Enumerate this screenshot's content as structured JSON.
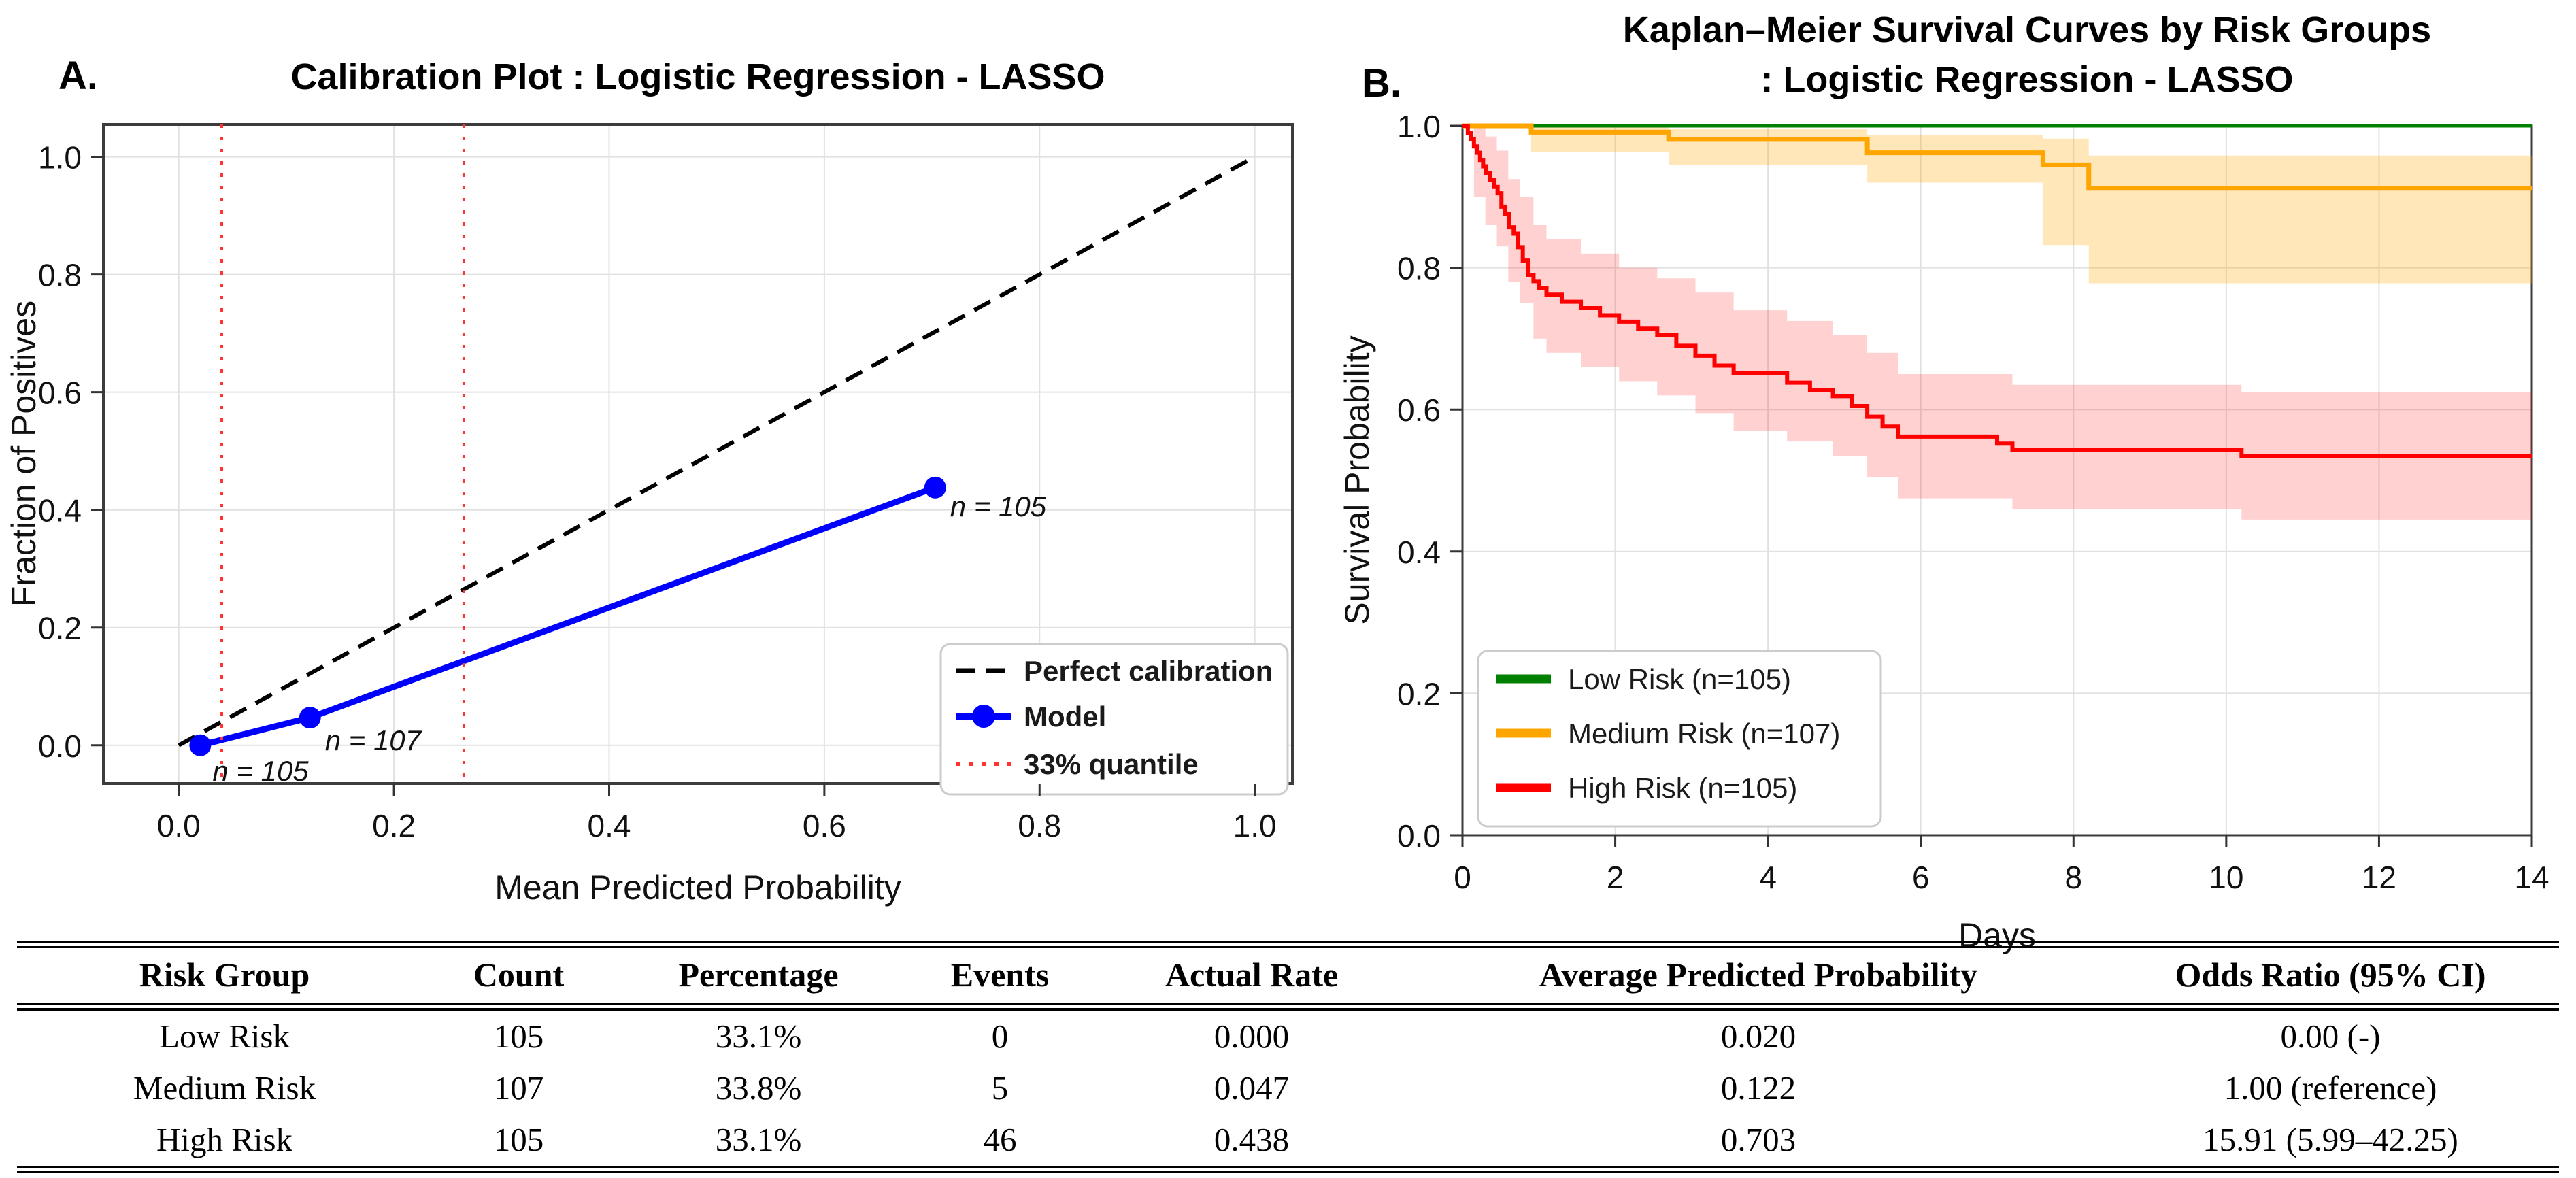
{
  "figure": {
    "panel_a": {
      "letter": "A.",
      "title": "Calibration Plot : Logistic Regression - LASSO",
      "xlabel": "Mean Predicted Probability",
      "ylabel": "Fraction of Positives"
    },
    "panel_b": {
      "letter": "B.",
      "title_line1": "Kaplan–Meier Survival Curves by Risk Groups",
      "title_line2": ": Logistic Regression - LASSO",
      "xlabel": "Days",
      "ylabel": "Survival Probability"
    }
  },
  "chart_data": [
    {
      "type": "line",
      "panel": "A",
      "title": "Calibration Plot : Logistic Regression - LASSO",
      "xlabel": "Mean Predicted Probability",
      "ylabel": "Fraction of Positives",
      "xlim": [
        -0.07,
        1.035
      ],
      "ylim": [
        -0.065,
        1.055
      ],
      "xticks": [
        0.0,
        0.2,
        0.4,
        0.6,
        0.8,
        1.0
      ],
      "yticks": [
        0.0,
        0.2,
        0.4,
        0.6,
        0.8,
        1.0
      ],
      "grid": true,
      "legend_position": "lower right",
      "series": [
        {
          "name": "Perfect calibration",
          "style": "dashed-line",
          "color": "#000000",
          "x": [
            0,
            1
          ],
          "y": [
            0,
            1
          ]
        },
        {
          "name": "Model",
          "style": "line-with-markers",
          "color": "#0000ff",
          "x": [
            0.02,
            0.122,
            0.703
          ],
          "y": [
            0.0,
            0.047,
            0.438
          ],
          "point_labels": [
            "n = 105",
            "n = 107",
            "n = 105"
          ]
        },
        {
          "name": "33% quantile",
          "style": "vertical-dotted-lines",
          "color": "#ff3333",
          "x": [
            0.04,
            0.265
          ]
        }
      ]
    },
    {
      "type": "step-line",
      "panel": "B",
      "title": "Kaplan–Meier Survival Curves by Risk Groups : Logistic Regression - LASSO",
      "xlabel": "Days",
      "ylabel": "Survival Probability",
      "xlim": [
        0,
        14
      ],
      "ylim": [
        0,
        1
      ],
      "xticks": [
        0,
        2,
        4,
        6,
        8,
        10,
        12,
        14
      ],
      "yticks": [
        0.0,
        0.2,
        0.4,
        0.6,
        0.8,
        1.0
      ],
      "grid": true,
      "legend_position": "lower left",
      "series": [
        {
          "name": "Low Risk (n=105)",
          "color": "#008000",
          "line_width": 5,
          "points": [
            [
              0,
              1.0
            ],
            [
              14,
              1.0
            ]
          ]
        },
        {
          "name": "Medium Risk (n=107)",
          "color": "#ffa500",
          "line_width": 7,
          "band_opacity": 0.27,
          "points": [
            [
              0,
              1.0
            ],
            [
              0.9,
              0.991
            ],
            [
              2.7,
              0.981
            ],
            [
              5.3,
              0.962
            ],
            [
              7.6,
              0.945
            ],
            [
              8.2,
              0.912
            ],
            [
              14,
              0.912
            ]
          ],
          "ci_band": [
            [
              0,
              1.0,
              1.0
            ],
            [
              0.9,
              0.963,
              0.999
            ],
            [
              2.7,
              0.945,
              0.996
            ],
            [
              5.3,
              0.92,
              0.987
            ],
            [
              7.6,
              0.832,
              0.982
            ],
            [
              8.2,
              0.778,
              0.958
            ],
            [
              14,
              0.778,
              0.958
            ]
          ]
        },
        {
          "name": "High Risk (n=105)",
          "color": "#ff0000",
          "line_width": 6,
          "band_opacity": 0.18,
          "points": [
            [
              0,
              1.0
            ],
            [
              0.07,
              0.99
            ],
            [
              0.11,
              0.981
            ],
            [
              0.15,
              0.971
            ],
            [
              0.19,
              0.962
            ],
            [
              0.23,
              0.952
            ],
            [
              0.27,
              0.943
            ],
            [
              0.31,
              0.933
            ],
            [
              0.36,
              0.924
            ],
            [
              0.41,
              0.914
            ],
            [
              0.46,
              0.905
            ],
            [
              0.51,
              0.886
            ],
            [
              0.56,
              0.876
            ],
            [
              0.61,
              0.857
            ],
            [
              0.67,
              0.848
            ],
            [
              0.73,
              0.829
            ],
            [
              0.79,
              0.81
            ],
            [
              0.86,
              0.79
            ],
            [
              0.93,
              0.781
            ],
            [
              1.0,
              0.771
            ],
            [
              1.1,
              0.762
            ],
            [
              1.3,
              0.752
            ],
            [
              1.55,
              0.743
            ],
            [
              1.8,
              0.733
            ],
            [
              2.05,
              0.724
            ],
            [
              2.3,
              0.714
            ],
            [
              2.55,
              0.705
            ],
            [
              2.8,
              0.69
            ],
            [
              3.05,
              0.676
            ],
            [
              3.3,
              0.662
            ],
            [
              3.55,
              0.652
            ],
            [
              4.25,
              0.638
            ],
            [
              4.55,
              0.628
            ],
            [
              4.85,
              0.619
            ],
            [
              5.1,
              0.605
            ],
            [
              5.3,
              0.59
            ],
            [
              5.5,
              0.576
            ],
            [
              5.7,
              0.562
            ],
            [
              7.0,
              0.552
            ],
            [
              7.2,
              0.543
            ],
            [
              10.2,
              0.535
            ],
            [
              14,
              0.535
            ]
          ],
          "ci_band": [
            [
              0,
              1.0,
              1.0
            ],
            [
              0.15,
              0.9,
              1.0
            ],
            [
              0.3,
              0.86,
              0.985
            ],
            [
              0.45,
              0.83,
              0.965
            ],
            [
              0.6,
              0.78,
              0.925
            ],
            [
              0.75,
              0.75,
              0.9
            ],
            [
              0.93,
              0.7,
              0.86
            ],
            [
              1.1,
              0.68,
              0.84
            ],
            [
              1.55,
              0.66,
              0.82
            ],
            [
              2.05,
              0.64,
              0.8
            ],
            [
              2.55,
              0.62,
              0.785
            ],
            [
              3.05,
              0.595,
              0.765
            ],
            [
              3.55,
              0.57,
              0.74
            ],
            [
              4.25,
              0.555,
              0.725
            ],
            [
              4.85,
              0.535,
              0.705
            ],
            [
              5.3,
              0.505,
              0.68
            ],
            [
              5.7,
              0.475,
              0.65
            ],
            [
              7.2,
              0.46,
              0.635
            ],
            [
              10.2,
              0.445,
              0.625
            ],
            [
              14,
              0.445,
              0.625
            ]
          ]
        }
      ]
    }
  ],
  "table": {
    "columns": [
      "Risk Group",
      "Count",
      "Percentage",
      "Events",
      "Actual Rate",
      "Average Predicted Probability",
      "Odds Ratio (95% CI)"
    ],
    "rows": [
      [
        "Low Risk",
        "105",
        "33.1%",
        "0",
        "0.000",
        "0.020",
        "0.00 (-)"
      ],
      [
        "Medium Risk",
        "107",
        "33.8%",
        "5",
        "0.047",
        "0.122",
        "1.00 (reference)"
      ],
      [
        "High Risk",
        "105",
        "33.1%",
        "46",
        "0.438",
        "0.703",
        "15.91 (5.99–42.25)"
      ]
    ]
  }
}
